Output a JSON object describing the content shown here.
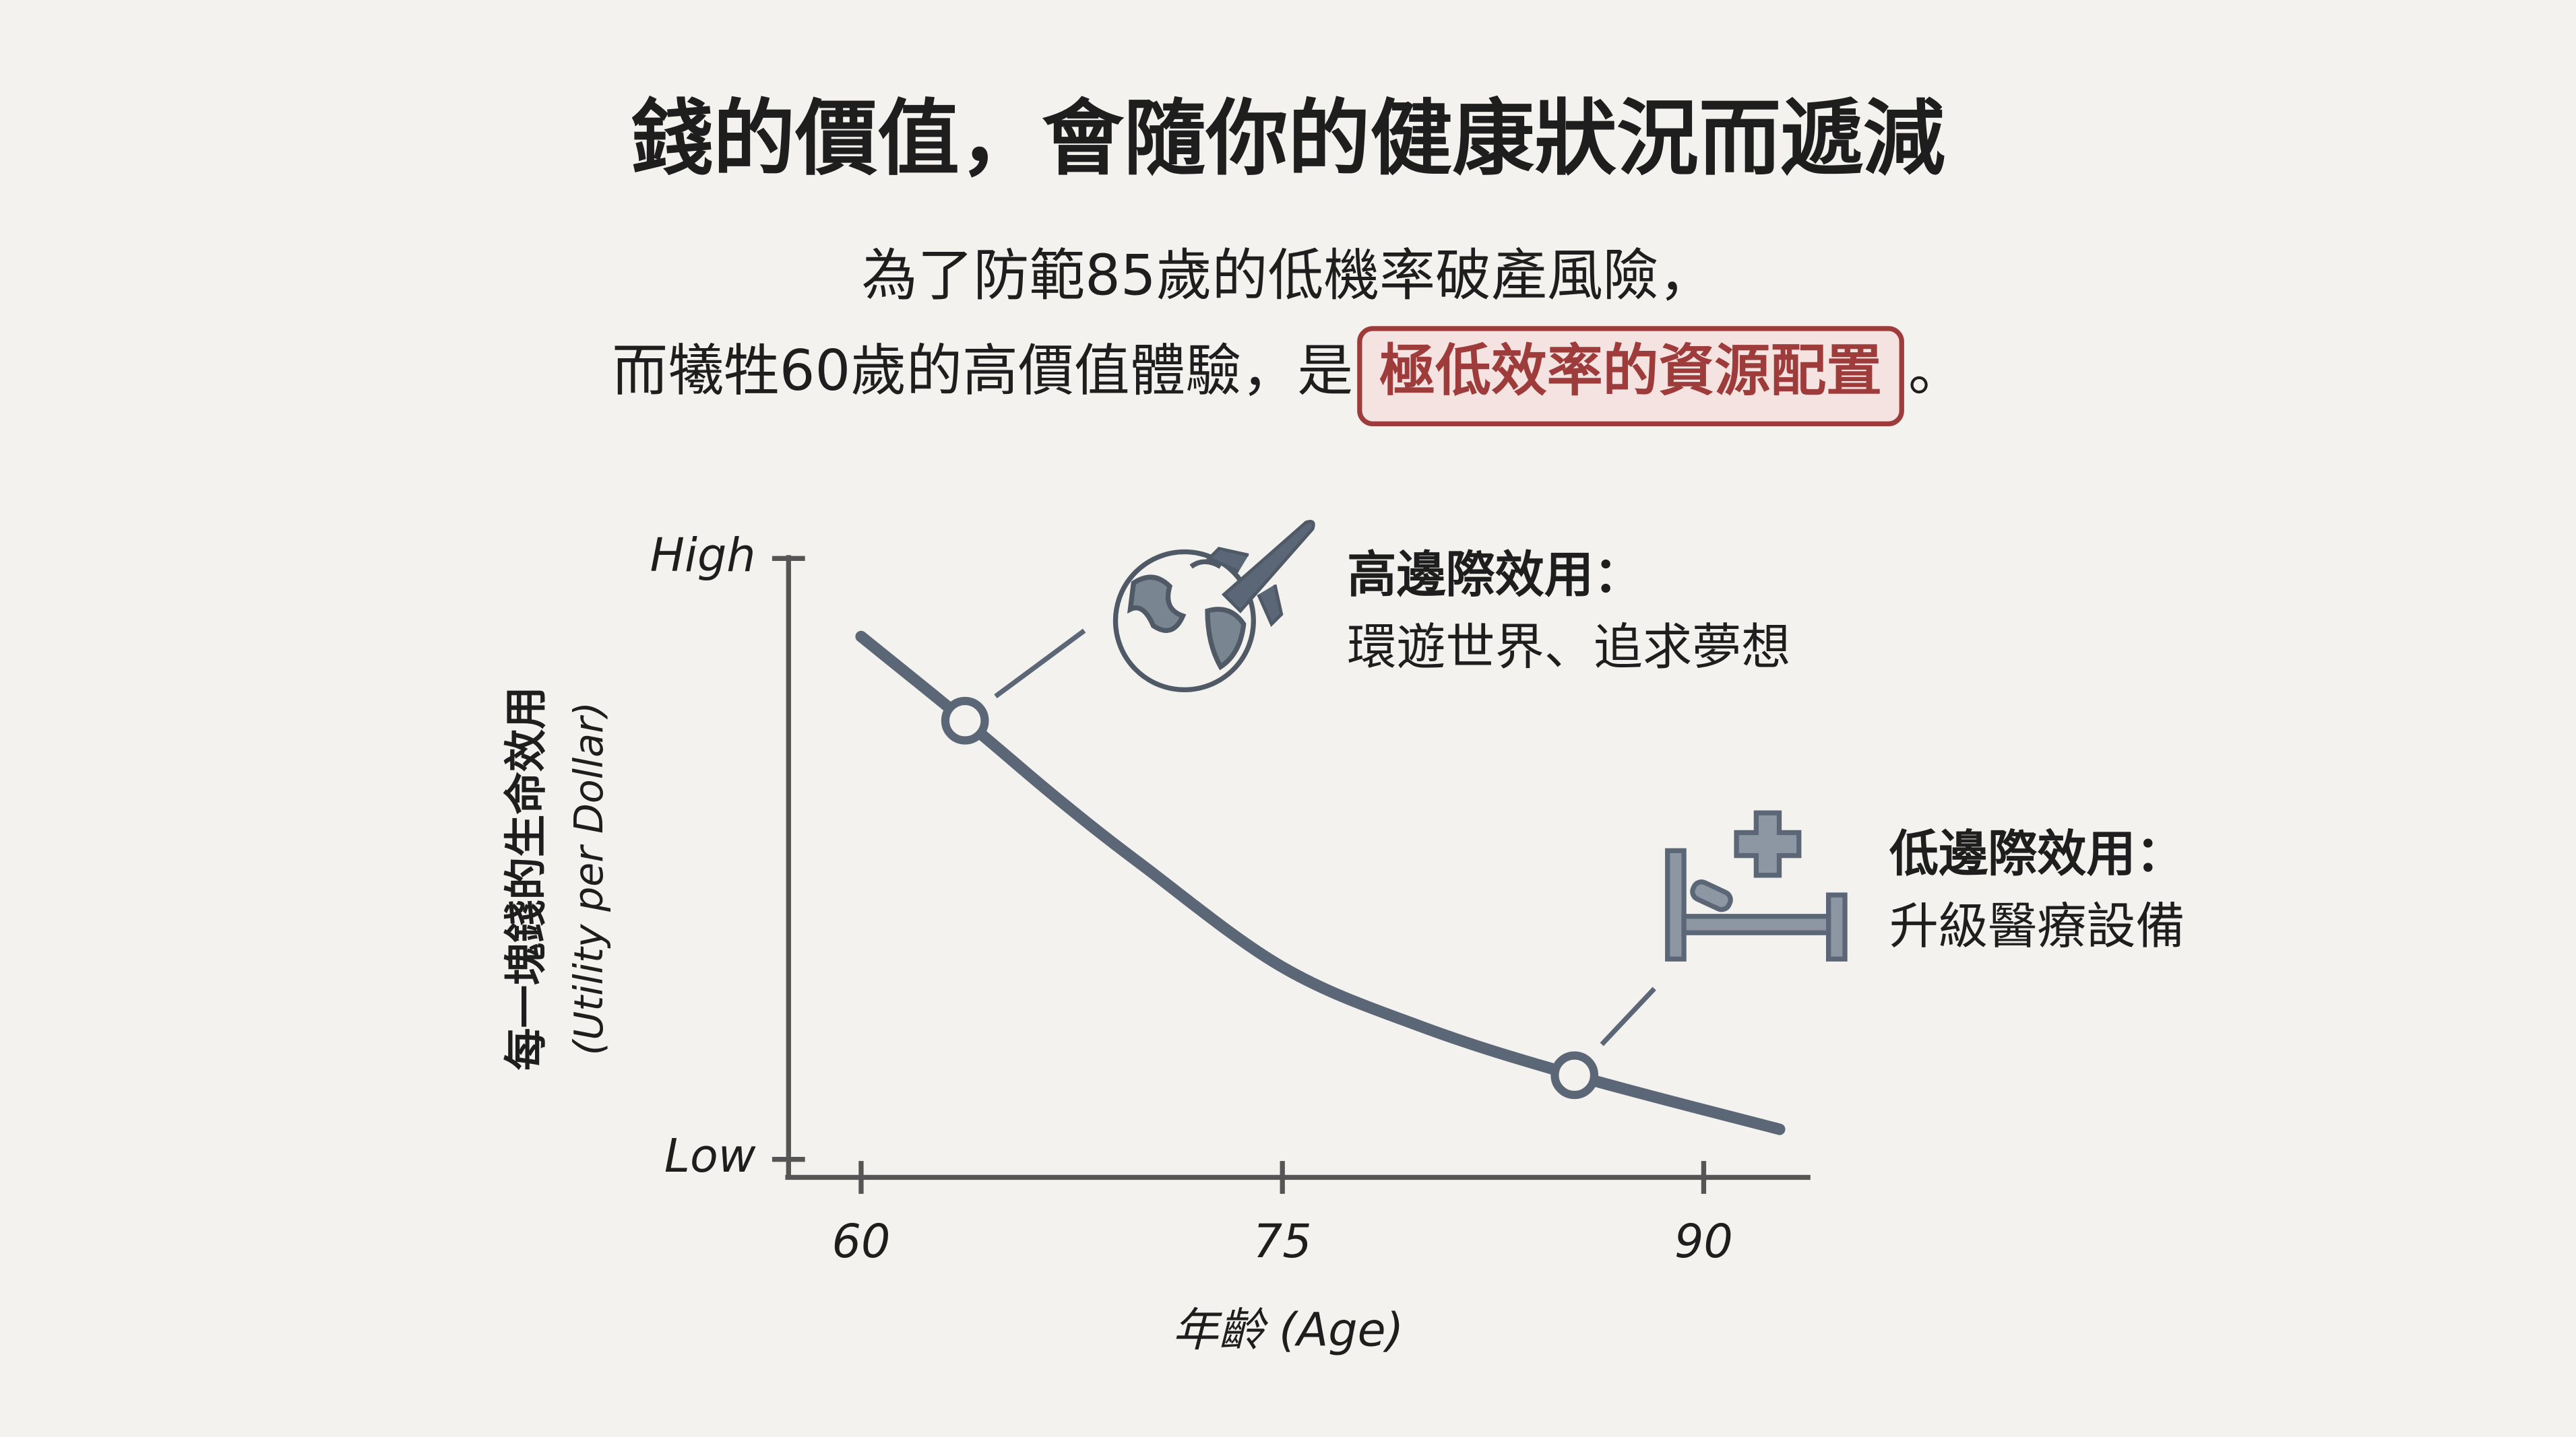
{
  "chart_data": {
    "type": "line",
    "title": "錢的價值，會隨你的健康狀況而遞減",
    "subtitle_line1": "為了防範85歲的低機率破產風險，",
    "subtitle_line2": {
      "before": "而犧牲60歲的高價值體驗，是",
      "highlight": "極低效率的資源配置",
      "after": "。"
    },
    "xlabel": "年齡 (Age)",
    "ylabel": [
      "每一塊錢的生命效用",
      "(Utility per Dollar)"
    ],
    "x": [
      60,
      63.7,
      67,
      70,
      75,
      80,
      85.4,
      92.7
    ],
    "series": [
      {
        "color": "#5b6776",
        "values": [
          0.87,
          0.73,
          0.6,
          0.49,
          0.32,
          0.22,
          0.14,
          0.05
        ]
      }
    ],
    "xlim": [
      57.3,
      93.8
    ],
    "xticks": [
      60,
      75,
      90
    ],
    "ylim": [
      -0.03,
      1
    ],
    "yticks": [
      {
        "value": 0,
        "label": "Low"
      },
      {
        "value": 1,
        "label": "High"
      }
    ],
    "annotations": [
      {
        "point": 1,
        "title": "高邊際效用：",
        "text": "環遊世界、追求夢想"
      },
      {
        "point": 6,
        "title": "低邊際效用：",
        "text": "升級醫療設備"
      }
    ]
  }
}
